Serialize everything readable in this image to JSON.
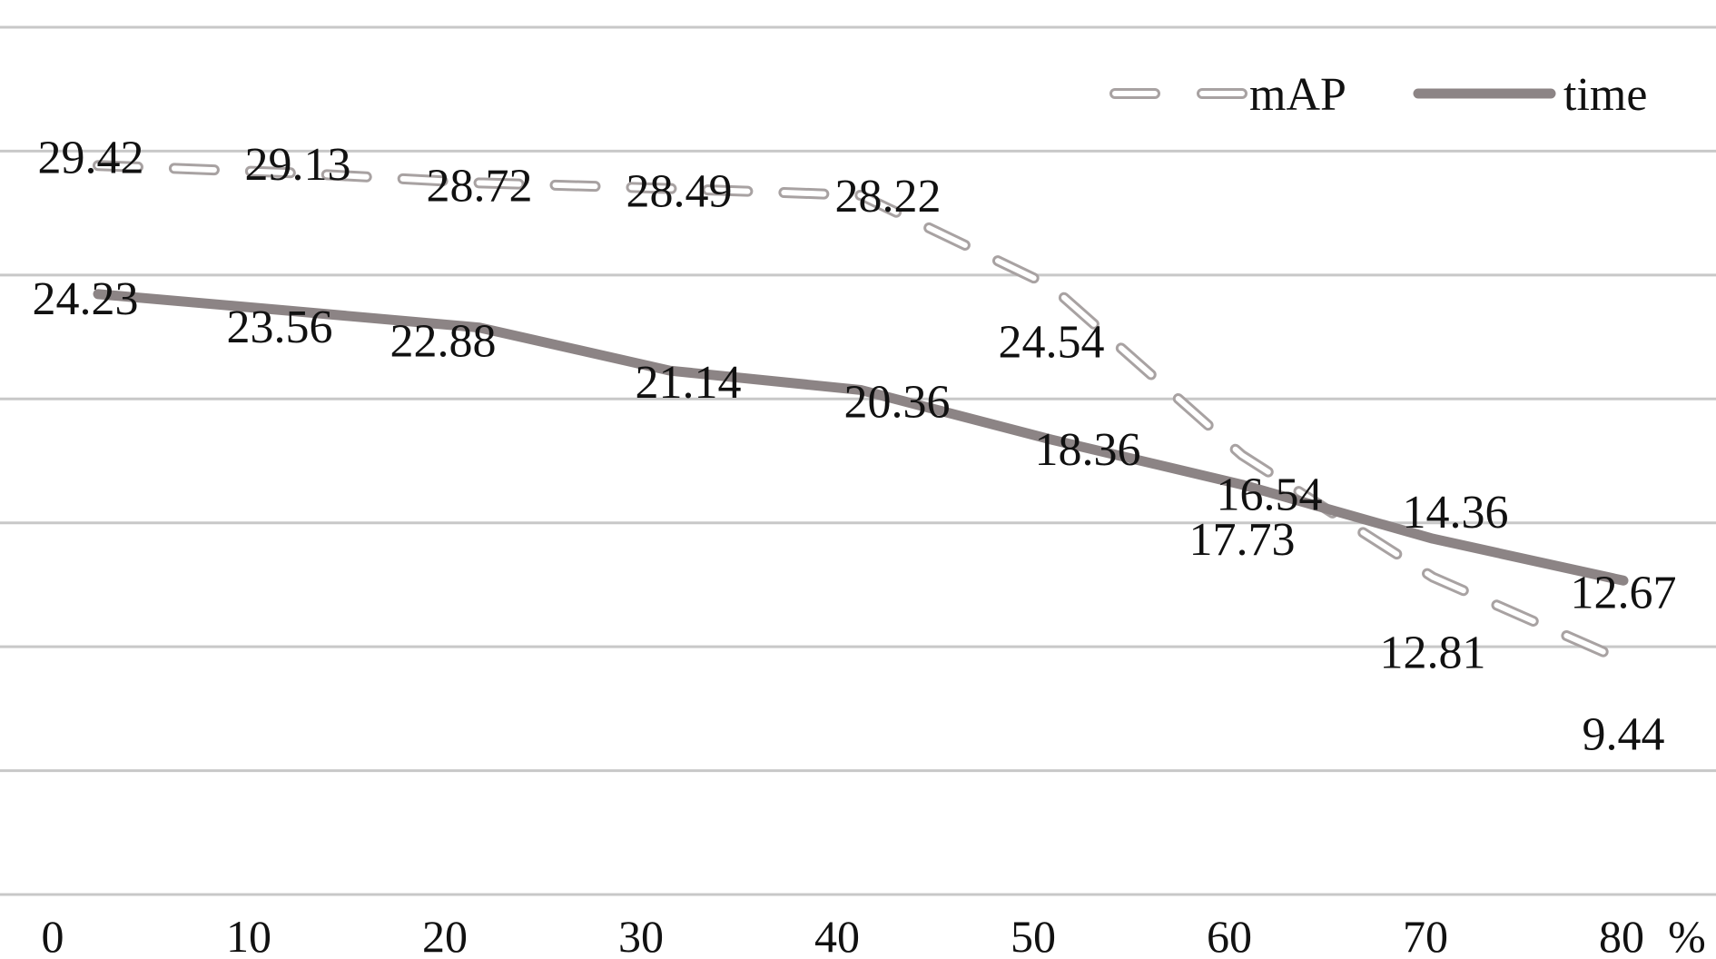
{
  "chart_data": {
    "type": "line",
    "title": "",
    "xlabel": "",
    "ylabel": "",
    "x_unit_label": "%",
    "categories": [
      "0",
      "10",
      "20",
      "30",
      "40",
      "50",
      "60",
      "70",
      "80"
    ],
    "ylim": [
      0,
      35
    ],
    "grid": "horizontal",
    "legend_position": "top-right",
    "series": [
      {
        "name": "mAP",
        "style": "dashed-outline",
        "color": "#a8a2a2",
        "values": [
          29.42,
          29.13,
          28.72,
          28.49,
          28.22,
          24.54,
          17.73,
          12.81,
          9.44
        ],
        "labels": [
          "29.42",
          "29.13",
          "28.72",
          "28.49",
          "28.22",
          "24.54",
          "17.73",
          "12.81",
          "9.44"
        ]
      },
      {
        "name": "time",
        "style": "solid",
        "color": "#8c8485",
        "values": [
          24.23,
          23.56,
          22.88,
          21.14,
          20.36,
          18.36,
          16.54,
          14.36,
          12.67
        ],
        "labels": [
          "24.23",
          "23.56",
          "22.88",
          "21.14",
          "20.36",
          "18.36",
          "16.54",
          "14.36",
          "12.67"
        ]
      }
    ]
  }
}
